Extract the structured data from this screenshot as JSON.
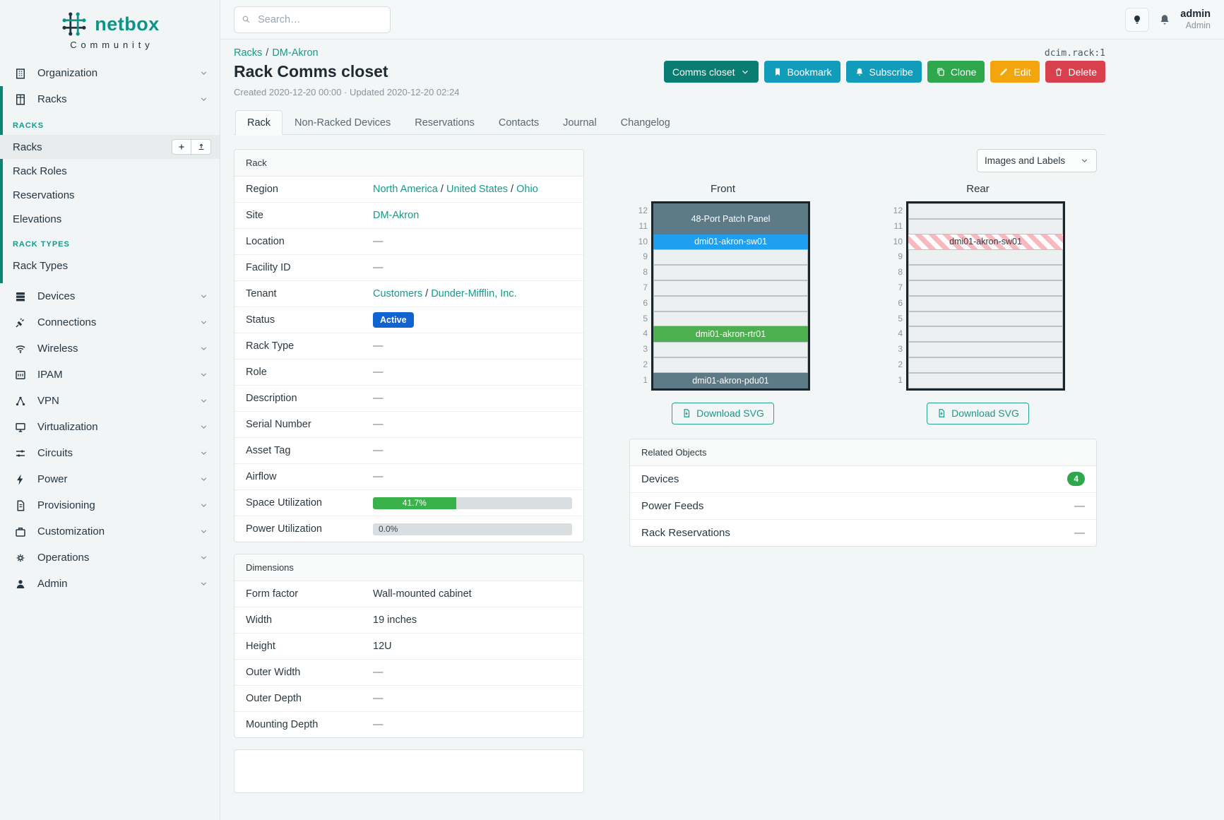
{
  "colors": {
    "accent": "#0d9488",
    "link": "#17998a",
    "teal_bar": "#0c8577"
  },
  "brand": {
    "name": "netbox",
    "tagline": "Community"
  },
  "topbar": {
    "search_placeholder": "Search…"
  },
  "user": {
    "name": "admin",
    "role": "Admin"
  },
  "object_ref": "dcim.rack:1",
  "breadcrumbs": [
    "Racks",
    "DM-Akron"
  ],
  "title": "Rack Comms closet",
  "meta": "Created 2020-12-20 00:00 · Updated 2020-12-20 02:24",
  "actions": [
    {
      "name": "comms-closet",
      "label": "Comms closet",
      "color": "#0a7d72",
      "trailing_icon": "chevron-down"
    },
    {
      "name": "bookmark",
      "label": "Bookmark",
      "color": "#119cba",
      "icon": "bookmark"
    },
    {
      "name": "subscribe",
      "label": "Subscribe",
      "color": "#119cba",
      "icon": "bell"
    },
    {
      "name": "clone",
      "label": "Clone",
      "color": "#2fa74d",
      "icon": "copy"
    },
    {
      "name": "edit",
      "label": "Edit",
      "color": "#f2a50c",
      "icon": "pencil"
    },
    {
      "name": "delete",
      "label": "Delete",
      "color": "#d9404d",
      "icon": "trash"
    }
  ],
  "tabs": [
    {
      "label": "Rack",
      "active": true
    },
    {
      "label": "Non-Racked Devices",
      "active": false
    },
    {
      "label": "Reservations",
      "active": false
    },
    {
      "label": "Contacts",
      "active": false
    },
    {
      "label": "Journal",
      "active": false
    },
    {
      "label": "Changelog",
      "active": false
    }
  ],
  "rack_panel": {
    "title": "Rack",
    "rows": [
      {
        "label": "Region",
        "type": "links",
        "links": [
          "North America",
          "United States",
          "Ohio"
        ]
      },
      {
        "label": "Site",
        "type": "links",
        "links": [
          "DM-Akron"
        ]
      },
      {
        "label": "Location",
        "type": "dash"
      },
      {
        "label": "Facility ID",
        "type": "dash"
      },
      {
        "label": "Tenant",
        "type": "links",
        "links": [
          "Customers",
          "Dunder-Mifflin, Inc."
        ]
      },
      {
        "label": "Status",
        "type": "badge",
        "value": "Active",
        "color": "#1163cf"
      },
      {
        "label": "Rack Type",
        "type": "dash"
      },
      {
        "label": "Role",
        "type": "dash"
      },
      {
        "label": "Description",
        "type": "dash"
      },
      {
        "label": "Serial Number",
        "type": "dash"
      },
      {
        "label": "Asset Tag",
        "type": "dash"
      },
      {
        "label": "Airflow",
        "type": "dash"
      },
      {
        "label": "Space Utilization",
        "type": "progress",
        "percent": 41.7,
        "text": "41.7%",
        "bar_color": "#38b249"
      },
      {
        "label": "Power Utilization",
        "type": "progress",
        "percent": 0,
        "text": "0.0%",
        "bar_color": "#38b249"
      }
    ]
  },
  "dimensions_panel": {
    "title": "Dimensions",
    "rows": [
      {
        "label": "Form factor",
        "type": "text",
        "value": "Wall-mounted cabinet"
      },
      {
        "label": "Width",
        "type": "text",
        "value": "19 inches"
      },
      {
        "label": "Height",
        "type": "text",
        "value": "12U"
      },
      {
        "label": "Outer Width",
        "type": "dash"
      },
      {
        "label": "Outer Depth",
        "type": "dash"
      },
      {
        "label": "Mounting Depth",
        "type": "dash"
      }
    ]
  },
  "elevation_controls": {
    "view_label": "Images and Labels",
    "download_label": "Download SVG"
  },
  "elevations": [
    {
      "name": "front",
      "title": "Front",
      "units_total": 12,
      "blocks": [
        {
          "top_unit": 12,
          "span": 2,
          "label": "48-Port Patch Panel",
          "bg": "#5d7a87",
          "fg": "#ffffff"
        },
        {
          "top_unit": 10,
          "span": 1,
          "label": "dmi01-akron-sw01",
          "bg": "#1e9ff0",
          "fg": "#ffffff"
        },
        {
          "top_unit": 4,
          "span": 1,
          "label": "dmi01-akron-rtr01",
          "bg": "#4cb04f",
          "fg": "#ffffff"
        },
        {
          "top_unit": 1,
          "span": 1,
          "label": "dmi01-akron-pdu01",
          "bg": "#5d7a87",
          "fg": "#ffffff"
        }
      ]
    },
    {
      "name": "rear",
      "title": "Rear",
      "units_total": 12,
      "blocks": [
        {
          "top_unit": 10,
          "span": 1,
          "label": "dmi01-akron-sw01",
          "striped": true,
          "fg": "#30404a"
        }
      ]
    }
  ],
  "related_objects": {
    "title": "Related Objects",
    "rows": [
      {
        "label": "Devices",
        "badge": "4",
        "badge_color": "#2fa74d"
      },
      {
        "label": "Power Feeds",
        "value": "—"
      },
      {
        "label": "Rack Reservations",
        "value": "—"
      }
    ]
  },
  "sidebar": {
    "items": [
      {
        "icon": "building",
        "label": "Organization",
        "chevron": true
      },
      {
        "icon": "rack",
        "label": "Racks",
        "chevron": true,
        "groups": [
          {
            "heading": "RACKS",
            "links": [
              {
                "label": "Racks",
                "active": true,
                "buttons": [
                  {
                    "icon": "plus",
                    "name": "add-rack-button"
                  },
                  {
                    "icon": "upload",
                    "name": "import-racks-button"
                  }
                ]
              },
              {
                "label": "Rack Roles"
              },
              {
                "label": "Reservations"
              },
              {
                "label": "Elevations"
              }
            ]
          },
          {
            "heading": "RACK TYPES",
            "links": [
              {
                "label": "Rack Types"
              }
            ]
          }
        ]
      },
      {
        "icon": "server",
        "label": "Devices",
        "chevron": true
      },
      {
        "icon": "plug",
        "label": "Connections",
        "chevron": true
      },
      {
        "icon": "wifi",
        "label": "Wireless",
        "chevron": true
      },
      {
        "icon": "grid",
        "label": "IPAM",
        "chevron": true
      },
      {
        "icon": "share",
        "label": "VPN",
        "chevron": true
      },
      {
        "icon": "monitor",
        "label": "Virtualization",
        "chevron": true
      },
      {
        "icon": "sliders",
        "label": "Circuits",
        "chevron": true
      },
      {
        "icon": "bolt",
        "label": "Power",
        "chevron": true
      },
      {
        "icon": "file",
        "label": "Provisioning",
        "chevron": true
      },
      {
        "icon": "briefcase",
        "label": "Customization",
        "chevron": true
      },
      {
        "icon": "gear",
        "label": "Operations",
        "chevron": true
      },
      {
        "icon": "user",
        "label": "Admin",
        "chevron": true
      }
    ]
  }
}
